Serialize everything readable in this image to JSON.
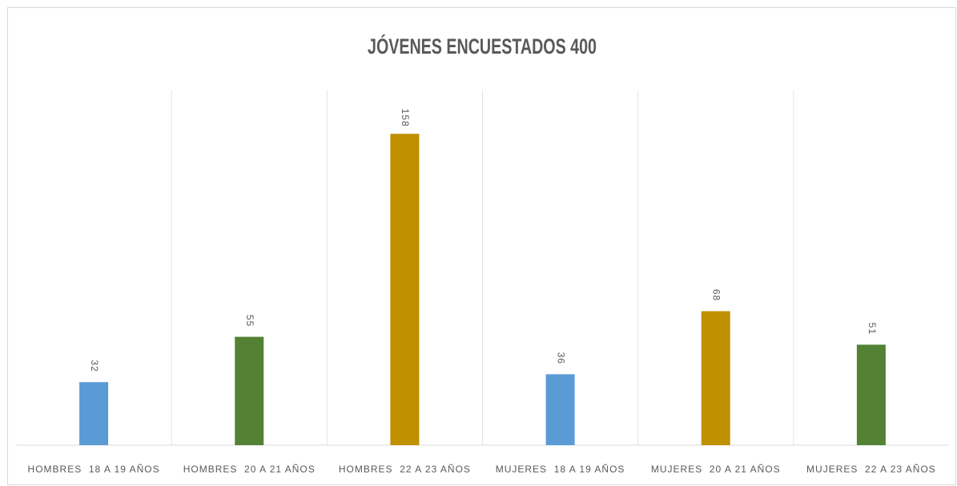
{
  "chart_data": {
    "type": "bar",
    "title": "JÓVENES ENCUESTADOS 400",
    "categories": [
      "HOMBRES  18 A 19 AÑOS",
      "HOMBRES  20 A 21 AÑOS",
      "HOMBRES  22 A 23 AÑOS",
      "MUJERES  18 A 19 AÑOS",
      "MUJERES  20 A 21 AÑOS",
      "MUJERES  22 A 23 AÑOS"
    ],
    "values": [
      32,
      55,
      158,
      36,
      68,
      51
    ],
    "colors": [
      "#5b9bd5",
      "#548235",
      "#bf9000",
      "#5b9bd5",
      "#bf9000",
      "#548235"
    ],
    "ylim": [
      0,
      180
    ],
    "category_grid": true
  }
}
